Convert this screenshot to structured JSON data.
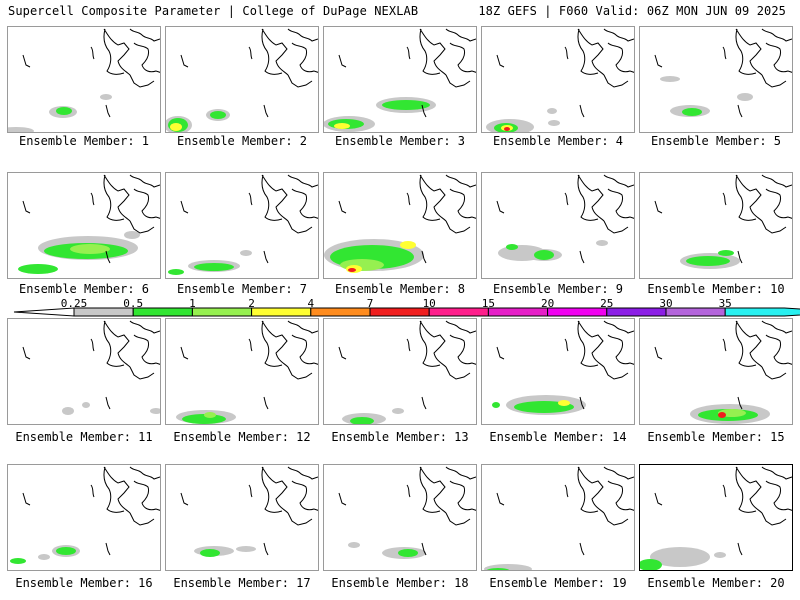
{
  "header": {
    "left_title": "Supercell Composite Parameter | College of DuPage NEXLAB",
    "right_title": "18Z GEFS | F060 Valid: 06Z MON JUN 09 2025"
  },
  "member_label_prefix": "Ensemble Member: ",
  "members": [
    "1",
    "2",
    "3",
    "4",
    "5",
    "6",
    "7",
    "8",
    "9",
    "10",
    "11",
    "12",
    "13",
    "14",
    "15",
    "16",
    "17",
    "18",
    "19",
    "20"
  ],
  "legend": {
    "ticks": [
      "0.25",
      "0.5",
      "1",
      "2",
      "4",
      "7",
      "10",
      "15",
      "20",
      "25",
      "30",
      "35"
    ],
    "colors": [
      "#c8c8c8",
      "#32e632",
      "#96f050",
      "#ffff32",
      "#ff8c1e",
      "#f01e1e",
      "#ff1e8c",
      "#e61ec8",
      "#f000f0",
      "#8c1ee6",
      "#b464dc",
      "#28f0f0"
    ]
  }
}
